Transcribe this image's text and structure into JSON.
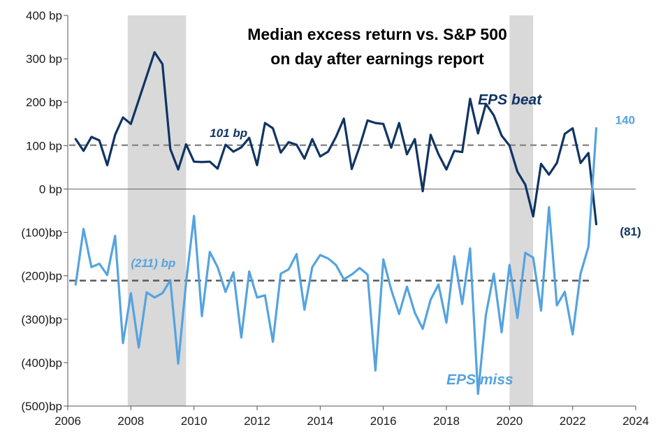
{
  "chart_data": {
    "type": "line",
    "title_lines": [
      "Median excess return vs. S&P 500",
      "on day after earnings report"
    ],
    "xlabel": "",
    "ylabel": "",
    "xlim": [
      2006,
      2024
    ],
    "ylim": [
      -500,
      400
    ],
    "x_ticks": [
      2006,
      2008,
      2010,
      2012,
      2014,
      2016,
      2018,
      2020,
      2022,
      2024
    ],
    "x_tick_labels": [
      "2006",
      "2008",
      "2010",
      "2012",
      "2014",
      "2016",
      "2018",
      "2020",
      "2022",
      "2024"
    ],
    "y_ticks": [
      400,
      300,
      200,
      100,
      0,
      -100,
      -200,
      -300,
      -400,
      -500
    ],
    "y_tick_labels": [
      "400 bp",
      "300 bp",
      "200 bp",
      "100 bp",
      "0 bp",
      "(100)bp",
      "(200)bp",
      "(300)bp",
      "(400)bp",
      "(500)bp"
    ],
    "grid": false,
    "legend": "none",
    "shaded_periods": [
      [
        2007.9,
        2009.75
      ],
      [
        2020.0,
        2020.75
      ]
    ],
    "series": [
      {
        "name": "EPS beat",
        "color": "#0f3462",
        "values": [
          [
            2006.25,
            115
          ],
          [
            2006.5,
            88
          ],
          [
            2006.75,
            120
          ],
          [
            2007.0,
            112
          ],
          [
            2007.25,
            55
          ],
          [
            2007.5,
            125
          ],
          [
            2007.75,
            165
          ],
          [
            2008.0,
            150
          ],
          [
            2008.25,
            205
          ],
          [
            2008.5,
            260
          ],
          [
            2008.75,
            315
          ],
          [
            2009.0,
            288
          ],
          [
            2009.25,
            92
          ],
          [
            2009.5,
            45
          ],
          [
            2009.75,
            103
          ],
          [
            2010.0,
            63
          ],
          [
            2010.25,
            62
          ],
          [
            2010.5,
            63
          ],
          [
            2010.75,
            47
          ],
          [
            2011.0,
            102
          ],
          [
            2011.25,
            86
          ],
          [
            2011.5,
            96
          ],
          [
            2011.75,
            118
          ],
          [
            2012.0,
            55
          ],
          [
            2012.25,
            152
          ],
          [
            2012.5,
            140
          ],
          [
            2012.75,
            84
          ],
          [
            2013.0,
            108
          ],
          [
            2013.25,
            102
          ],
          [
            2013.5,
            70
          ],
          [
            2013.75,
            115
          ],
          [
            2014.0,
            75
          ],
          [
            2014.25,
            86
          ],
          [
            2014.5,
            120
          ],
          [
            2014.75,
            162
          ],
          [
            2015.0,
            46
          ],
          [
            2015.25,
            98
          ],
          [
            2015.5,
            158
          ],
          [
            2015.75,
            152
          ],
          [
            2016.0,
            150
          ],
          [
            2016.25,
            95
          ],
          [
            2016.5,
            152
          ],
          [
            2016.75,
            80
          ],
          [
            2017.0,
            115
          ],
          [
            2017.25,
            -5
          ],
          [
            2017.5,
            125
          ],
          [
            2017.75,
            80
          ],
          [
            2018.0,
            45
          ],
          [
            2018.25,
            88
          ],
          [
            2018.5,
            85
          ],
          [
            2018.75,
            208
          ],
          [
            2019.0,
            128
          ],
          [
            2019.25,
            196
          ],
          [
            2019.5,
            170
          ],
          [
            2019.75,
            123
          ],
          [
            2020.0,
            100
          ],
          [
            2020.25,
            40
          ],
          [
            2020.5,
            10
          ],
          [
            2020.75,
            -63
          ],
          [
            2021.0,
            58
          ],
          [
            2021.25,
            33
          ],
          [
            2021.5,
            60
          ],
          [
            2021.75,
            127
          ],
          [
            2022.0,
            140
          ],
          [
            2022.25,
            60
          ],
          [
            2022.5,
            83
          ],
          [
            2022.75,
            -81
          ]
        ]
      },
      {
        "name": "EPS miss",
        "color": "#55a3e0",
        "values": [
          [
            2006.25,
            -220
          ],
          [
            2006.5,
            -92
          ],
          [
            2006.75,
            -180
          ],
          [
            2007.0,
            -172
          ],
          [
            2007.25,
            -198
          ],
          [
            2007.5,
            -108
          ],
          [
            2007.75,
            -355
          ],
          [
            2008.0,
            -240
          ],
          [
            2008.25,
            -365
          ],
          [
            2008.5,
            -238
          ],
          [
            2008.75,
            -250
          ],
          [
            2009.0,
            -240
          ],
          [
            2009.25,
            -210
          ],
          [
            2009.5,
            -402
          ],
          [
            2009.75,
            -215
          ],
          [
            2010.0,
            -62
          ],
          [
            2010.25,
            -293
          ],
          [
            2010.5,
            -145
          ],
          [
            2010.75,
            -180
          ],
          [
            2011.0,
            -237
          ],
          [
            2011.25,
            -192
          ],
          [
            2011.5,
            -342
          ],
          [
            2011.75,
            -190
          ],
          [
            2012.0,
            -250
          ],
          [
            2012.25,
            -245
          ],
          [
            2012.5,
            -352
          ],
          [
            2012.75,
            -195
          ],
          [
            2013.0,
            -185
          ],
          [
            2013.25,
            -150
          ],
          [
            2013.5,
            -278
          ],
          [
            2013.75,
            -180
          ],
          [
            2014.0,
            -152
          ],
          [
            2014.25,
            -160
          ],
          [
            2014.5,
            -175
          ],
          [
            2014.75,
            -208
          ],
          [
            2015.0,
            -197
          ],
          [
            2015.25,
            -182
          ],
          [
            2015.5,
            -197
          ],
          [
            2015.75,
            -418
          ],
          [
            2016.0,
            -162
          ],
          [
            2016.25,
            -232
          ],
          [
            2016.5,
            -288
          ],
          [
            2016.75,
            -225
          ],
          [
            2017.0,
            -285
          ],
          [
            2017.25,
            -322
          ],
          [
            2017.5,
            -255
          ],
          [
            2017.75,
            -220
          ],
          [
            2018.0,
            -308
          ],
          [
            2018.25,
            -155
          ],
          [
            2018.5,
            -265
          ],
          [
            2018.75,
            -137
          ],
          [
            2019.0,
            -472
          ],
          [
            2019.25,
            -290
          ],
          [
            2019.5,
            -195
          ],
          [
            2019.75,
            -330
          ],
          [
            2020.0,
            -175
          ],
          [
            2020.25,
            -297
          ],
          [
            2020.5,
            -147
          ],
          [
            2020.75,
            -158
          ],
          [
            2021.0,
            -280
          ],
          [
            2021.25,
            -42
          ],
          [
            2021.5,
            -268
          ],
          [
            2021.75,
            -237
          ],
          [
            2022.0,
            -335
          ],
          [
            2022.25,
            -195
          ],
          [
            2022.5,
            -133
          ],
          [
            2022.75,
            140
          ]
        ]
      }
    ],
    "reference_lines": [
      {
        "y": 101,
        "label": "101 bp",
        "color": "#8c8c8c"
      },
      {
        "y": -211,
        "label": "(211) bp",
        "color": "#595959"
      }
    ],
    "annotations": [
      {
        "text": "EPS beat",
        "x": 2019.0,
        "y": 195,
        "color": "#0f3462"
      },
      {
        "text": "EPS miss",
        "x": 2018.0,
        "y": -450,
        "color": "#55a3e0"
      },
      {
        "text": "140",
        "x": 2023.35,
        "y": 150,
        "color": "#55a3e0"
      },
      {
        "text": "(81)",
        "x": 2023.5,
        "y": -107,
        "color": "#0f3462"
      }
    ]
  }
}
